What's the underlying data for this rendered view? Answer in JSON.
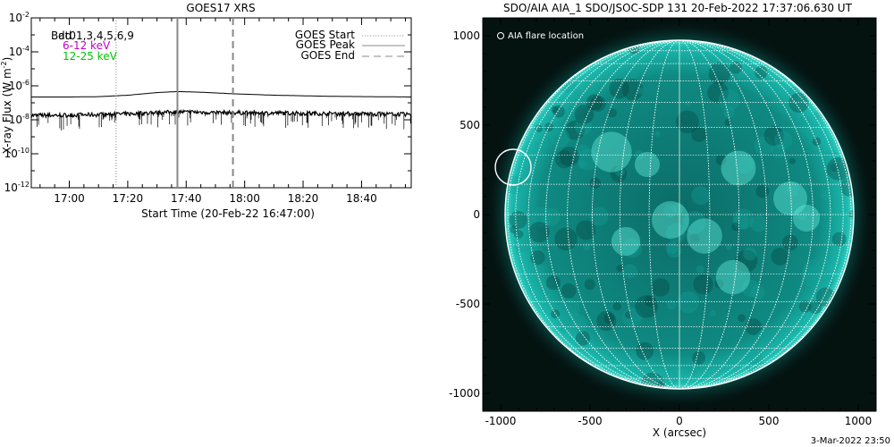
{
  "left_panel": {
    "title": "GOES17 XRS",
    "y_axis_label": "X-ray Flux (W m",
    "y_axis_label_sup": "-2",
    "y_axis_label_end": ")",
    "x_axis_label": "Start Time (20-Feb-22 16:47:00)",
    "channels": [
      {
        "label": "Bad",
        "color": "#000000"
      },
      {
        "label": "6-12 keV",
        "color": "#c800c8"
      },
      {
        "label": "12-25 keV",
        "color": "#00c800"
      }
    ],
    "overlay_text": "dt01,3,4,5,6,9",
    "legend": [
      {
        "label": "GOES Start",
        "style": "dotted"
      },
      {
        "label": "GOES Peak",
        "style": "solid"
      },
      {
        "label": "GOES End",
        "style": "dashed"
      }
    ]
  },
  "right_panel": {
    "title": "SDO/AIA AIA_1 SDO/JSOC-SDP 131 20-Feb-2022 17:37:06.630 UT",
    "legend_label": "AIA flare location",
    "x_axis_label": "X (arcsec)",
    "disk_color": "#0aa29a",
    "background_color": "#041210"
  },
  "footer_timestamp": "3-Mar-2022 23:50",
  "chart_data": [
    {
      "type": "line",
      "title": "GOES17 XRS",
      "xlabel": "Start Time (20-Feb-22 16:47:00)",
      "ylabel": "X-ray Flux (W m^-2)",
      "y_scale": "log",
      "ylim": [
        1e-12,
        0.01
      ],
      "x_tick_labels": [
        "17:00",
        "17:20",
        "17:40",
        "18:00",
        "18:20",
        "18:40"
      ],
      "y_tick_labels": [
        "10^-12",
        "10^-10",
        "10^-8",
        "10^-6",
        "10^-4",
        "10^-2"
      ],
      "xlim": [
        "16:47",
        "18:57"
      ],
      "series": [
        {
          "name": "6-12 keV",
          "x": [
            "16:47",
            "17:00",
            "17:10",
            "17:20",
            "17:30",
            "17:37",
            "17:45",
            "17:56",
            "18:10",
            "18:30",
            "18:57"
          ],
          "values": [
            2.2e-07,
            2.2e-07,
            2.3e-07,
            2.8e-07,
            4e-07,
            4.6e-07,
            4.2e-07,
            3.4e-07,
            2.8e-07,
            2.4e-07,
            2.2e-07
          ]
        },
        {
          "name": "12-25 keV",
          "x": [
            "16:47",
            "17:00",
            "17:10",
            "17:20",
            "17:30",
            "17:37",
            "17:45",
            "17:56",
            "18:10",
            "18:30",
            "18:57"
          ],
          "values": [
            1.8e-08,
            1.9e-08,
            2e-08,
            2.2e-08,
            2.6e-08,
            2.9e-08,
            2.8e-08,
            2.6e-08,
            2.5e-08,
            2.3e-08,
            2.1e-08
          ]
        }
      ],
      "markers": [
        {
          "name": "GOES Start",
          "x": "17:16",
          "style": "dotted"
        },
        {
          "name": "GOES Peak",
          "x": "17:37",
          "style": "solid"
        },
        {
          "name": "GOES End",
          "x": "17:56",
          "style": "dashed"
        }
      ],
      "legend_position": "top-right",
      "grid": false
    },
    {
      "type": "scatter",
      "title": "SDO/AIA AIA_1 SDO/JSOC-SDP 131 20-Feb-2022 17:37:06.630 UT",
      "xlabel": "X (arcsec)",
      "ylabel": "",
      "xlim": [
        -1100,
        1100
      ],
      "ylim": [
        -1100,
        1100
      ],
      "x_tick_labels": [
        "-1000",
        "-500",
        "0",
        "500",
        "1000"
      ],
      "y_tick_labels": [
        "-1000",
        "-500",
        "0",
        "500",
        "1000"
      ],
      "solar_radius_arcsec": 975,
      "series": [
        {
          "name": "AIA flare location",
          "x": [
            -930
          ],
          "values": [
            265
          ]
        }
      ],
      "legend_position": "top-left",
      "grid": true
    }
  ]
}
